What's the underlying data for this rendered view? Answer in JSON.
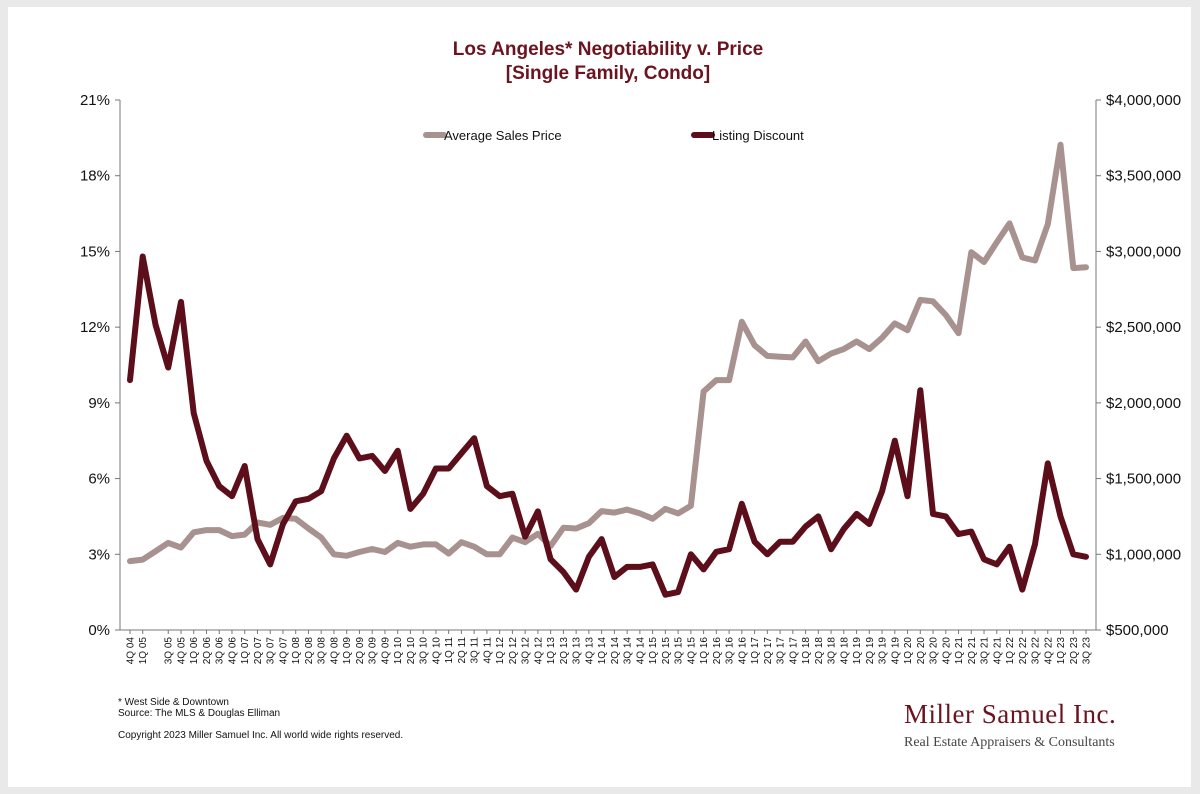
{
  "chart_data": {
    "type": "line",
    "title": "Los Angeles* Negotiability v. Price",
    "subtitle": "[Single Family, Condo]",
    "x": [
      "4Q 04",
      "1Q 05",
      "2Q 05",
      "3Q 05",
      "4Q 05",
      "1Q 06",
      "2Q 06",
      "3Q 06",
      "4Q 06",
      "1Q 07",
      "2Q 07",
      "3Q 07",
      "4Q 07",
      "1Q 08",
      "2Q 08",
      "3Q 08",
      "4Q 08",
      "1Q 09",
      "2Q 09",
      "3Q 09",
      "4Q 09",
      "1Q 10",
      "2Q 10",
      "3Q 10",
      "4Q 10",
      "1Q 11",
      "2Q 11",
      "3Q 11",
      "4Q 11",
      "1Q 12",
      "2Q 12",
      "3Q 12",
      "4Q 12",
      "1Q 13",
      "2Q 13",
      "3Q 13",
      "4Q 13",
      "1Q 14",
      "2Q 14",
      "3Q 14",
      "4Q 14",
      "1Q 15",
      "2Q 15",
      "3Q 15",
      "4Q 15",
      "1Q 16",
      "2Q 16",
      "3Q 16",
      "4Q 16",
      "1Q 17",
      "2Q 17",
      "3Q 17",
      "4Q 17",
      "1Q 18",
      "2Q 18",
      "3Q 18",
      "4Q 18",
      "1Q 19",
      "2Q 19",
      "3Q 19",
      "4Q 19",
      "1Q 20",
      "2Q 20",
      "3Q 20",
      "4Q 20",
      "1Q 21",
      "2Q 21",
      "3Q 21",
      "4Q 21",
      "1Q 22",
      "2Q 22",
      "3Q 22",
      "4Q 22",
      "1Q 23",
      "2Q 23",
      "3Q 23"
    ],
    "x_tick_labels": [
      "4Q 04",
      "1Q 05",
      "3Q 05",
      "4Q 05",
      "1Q 06",
      "2Q 06",
      "3Q 06",
      "4Q 06",
      "1Q 07",
      "2Q 07",
      "3Q 07",
      "4Q 07",
      "1Q 08",
      "2Q 08",
      "3Q 08",
      "4Q 08",
      "1Q 09",
      "2Q 09",
      "3Q 09",
      "4Q 09",
      "1Q 10",
      "2Q 10",
      "3Q 10",
      "4Q 10",
      "1Q 11",
      "2Q 11",
      "3Q 11",
      "4Q 11",
      "1Q 12",
      "2Q 12",
      "3Q 12",
      "4Q 12",
      "1Q 13",
      "2Q 13",
      "3Q 13",
      "4Q 13",
      "1Q 14",
      "2Q 14",
      "3Q 14",
      "4Q 14",
      "1Q 15",
      "2Q 15",
      "3Q 15",
      "4Q 15",
      "1Q 16",
      "2Q 16",
      "3Q 16",
      "4Q 16",
      "1Q 17",
      "2Q 17",
      "3Q 17",
      "4Q 17",
      "1Q 18",
      "2Q 18",
      "3Q 18",
      "4Q 18",
      "1Q 19",
      "2Q 19",
      "3Q 19",
      "4Q 19",
      "1Q 20",
      "2Q 20",
      "3Q 20",
      "4Q 20",
      "1Q 21",
      "2Q 21",
      "3Q 21",
      "4Q 21",
      "1Q 22",
      "2Q 22",
      "3Q 22",
      "4Q 22",
      "1Q 23",
      "2Q 23",
      "3Q 23"
    ],
    "y_left": {
      "ticks": [
        "0%",
        "3%",
        "6%",
        "9%",
        "12%",
        "15%",
        "18%",
        "21%"
      ],
      "min": 0,
      "max": 21
    },
    "y_right": {
      "ticks": [
        "$500,000",
        "$1,000,000",
        "$1,500,000",
        "$2,000,000",
        "$2,500,000",
        "$3,000,000",
        "$3,500,000",
        "$4,000,000"
      ],
      "min": 500000,
      "max": 4000000
    },
    "series": [
      {
        "name": "Average Sales Price",
        "axis": "right",
        "color": "#a89290",
        "values": [
          955000,
          965000,
          1020000,
          1075000,
          1045000,
          1145000,
          1160000,
          1160000,
          1120000,
          1130000,
          1210000,
          1195000,
          1240000,
          1235000,
          1170000,
          1110000,
          1000000,
          990000,
          1015000,
          1035000,
          1015000,
          1075000,
          1050000,
          1065000,
          1065000,
          1005000,
          1080000,
          1050000,
          1000000,
          1000000,
          1110000,
          1080000,
          1135000,
          1055000,
          1175000,
          1170000,
          1205000,
          1285000,
          1275000,
          1295000,
          1270000,
          1235000,
          1300000,
          1270000,
          1320000,
          2075000,
          2150000,
          2150000,
          2535000,
          2380000,
          2310000,
          2305000,
          2300000,
          2405000,
          2275000,
          2325000,
          2355000,
          2405000,
          2355000,
          2430000,
          2525000,
          2480000,
          2680000,
          2670000,
          2580000,
          2460000,
          2995000,
          2930000,
          3060000,
          3185000,
          2960000,
          2940000,
          3180000,
          3705000,
          2890000,
          2895000
        ]
      },
      {
        "name": "Listing Discount",
        "axis": "left",
        "color": "#5c0e1a",
        "values": [
          9.9,
          14.8,
          12.1,
          10.4,
          13.0,
          8.6,
          6.7,
          5.7,
          5.3,
          6.5,
          3.6,
          2.6,
          4.2,
          5.1,
          5.2,
          5.5,
          6.8,
          7.7,
          6.8,
          6.9,
          6.3,
          7.1,
          4.8,
          5.4,
          6.4,
          6.4,
          7.0,
          7.6,
          5.7,
          5.3,
          5.4,
          3.7,
          4.7,
          2.8,
          2.3,
          1.6,
          2.9,
          3.6,
          2.1,
          2.5,
          2.5,
          2.6,
          1.4,
          1.5,
          3.0,
          2.4,
          3.1,
          3.2,
          5.0,
          3.5,
          3.0,
          3.5,
          3.5,
          4.1,
          4.5,
          3.2,
          4.0,
          4.6,
          4.2,
          5.5,
          7.5,
          5.3,
          9.5,
          4.6,
          4.5,
          3.8,
          3.9,
          2.8,
          2.6,
          3.3,
          1.6,
          3.4,
          6.6,
          4.5,
          3.0,
          2.9
        ]
      }
    ],
    "legend_position": "top",
    "grid": false
  },
  "footnotes": {
    "note": "* West Side & Downtown",
    "source": "Source: The MLS & Douglas Elliman",
    "copyright": "Copyright 2023 Miller Samuel Inc.  All world wide rights reserved."
  },
  "brand": {
    "name": "Miller Samuel Inc.",
    "tagline": "Real Estate Appraisers & Consultants"
  }
}
